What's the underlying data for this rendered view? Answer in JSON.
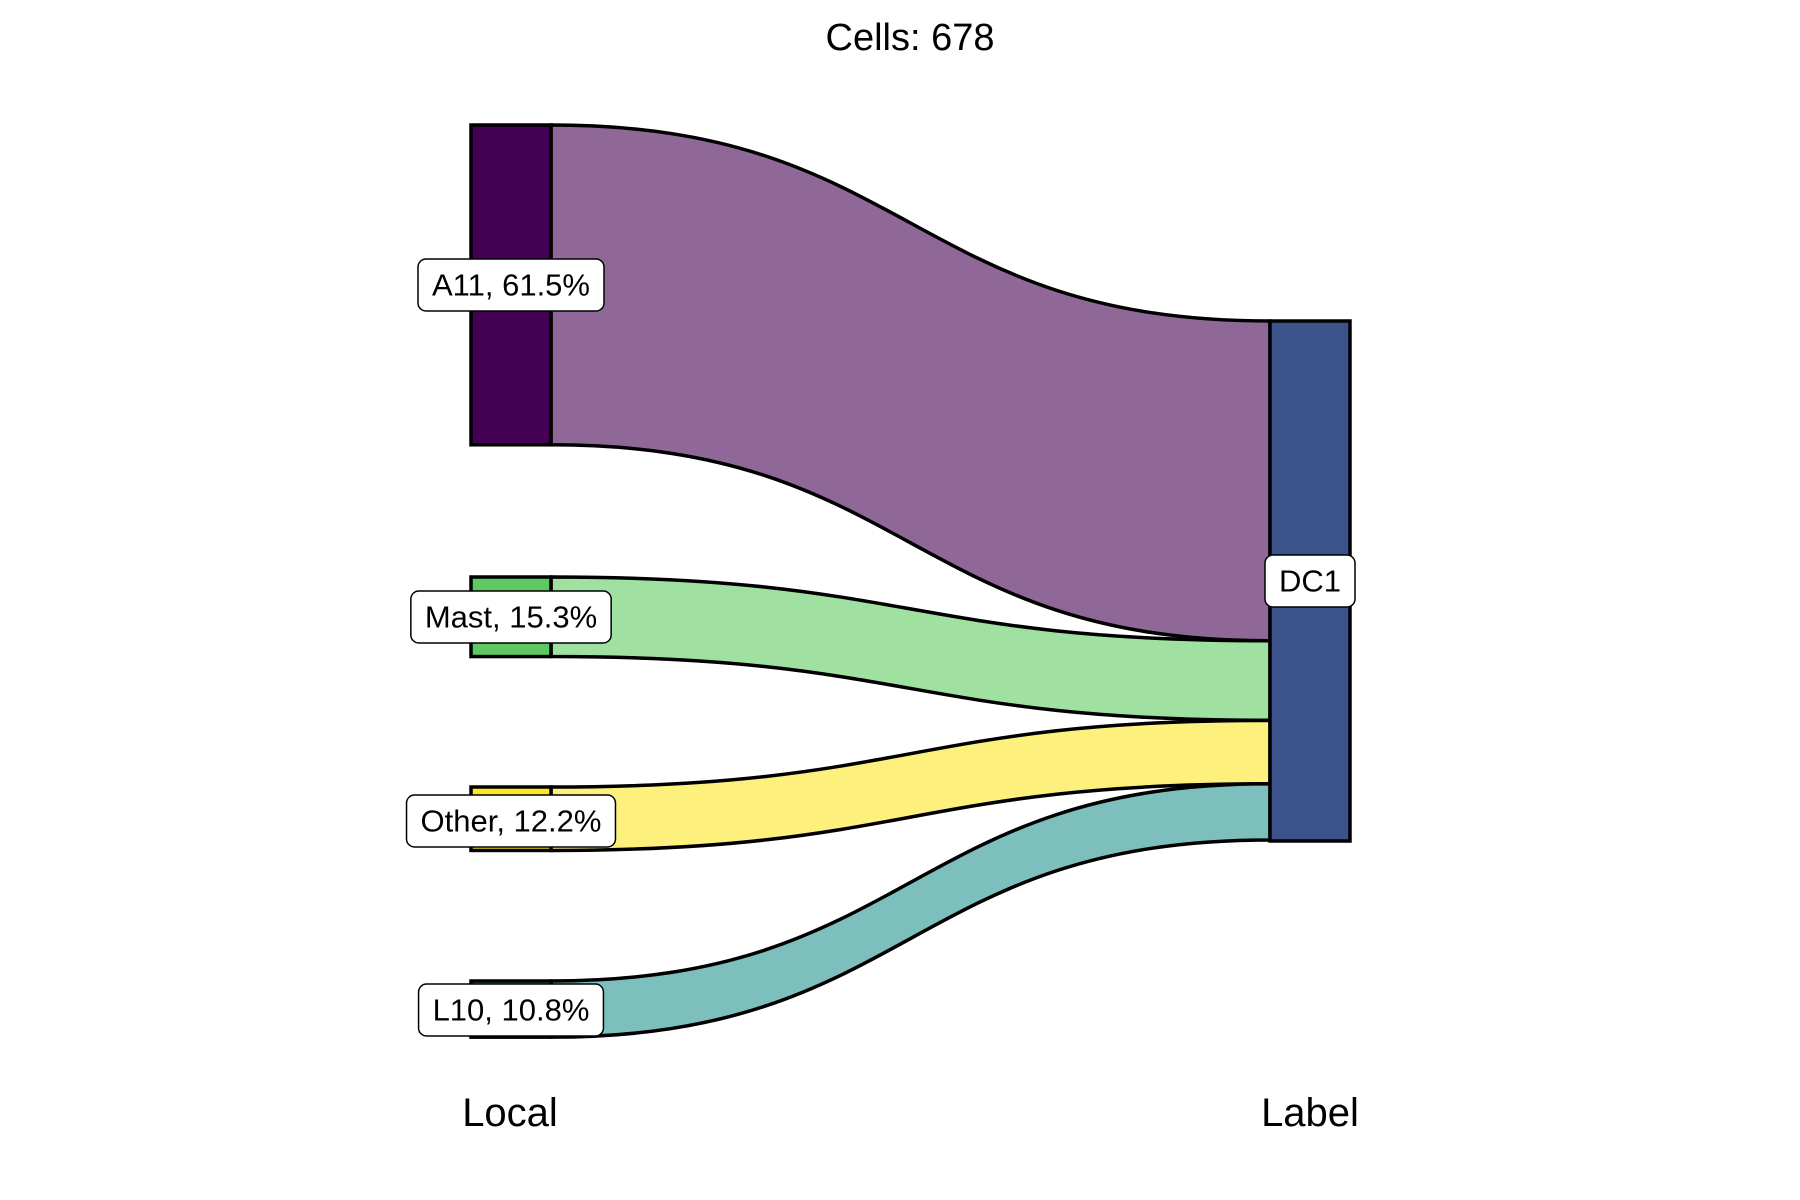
{
  "chart_data": {
    "type": "sankey",
    "title": "Cells:  678",
    "axis_labels": [
      "Local",
      "Label"
    ],
    "total_cells": 678,
    "left_nodes": [
      {
        "name": "A11",
        "label": "A11, 61.5%",
        "percent": 61.5,
        "color": "#440154",
        "flow_color": "#8f6898"
      },
      {
        "name": "Mast",
        "label": "Mast, 15.3%",
        "percent": 15.3,
        "color": "#5ec962",
        "flow_color": "#a0e0a0"
      },
      {
        "name": "Other",
        "label": "Other, 12.2%",
        "percent": 12.2,
        "color": "#fde725",
        "flow_color": "#fdf07c"
      },
      {
        "name": "L10",
        "label": "L10, 10.8%",
        "percent": 10.8,
        "color": "#21918c",
        "flow_color": "#7cbfbc"
      }
    ],
    "right_nodes": [
      {
        "name": "DC1",
        "label": "DC1",
        "percent": 100,
        "color": "#3b528b"
      }
    ],
    "flows": [
      {
        "from": "A11",
        "to": "DC1",
        "percent": 61.5
      },
      {
        "from": "Mast",
        "to": "DC1",
        "percent": 15.3
      },
      {
        "from": "Other",
        "to": "DC1",
        "percent": 12.2
      },
      {
        "from": "L10",
        "to": "DC1",
        "percent": 10.8
      }
    ]
  }
}
